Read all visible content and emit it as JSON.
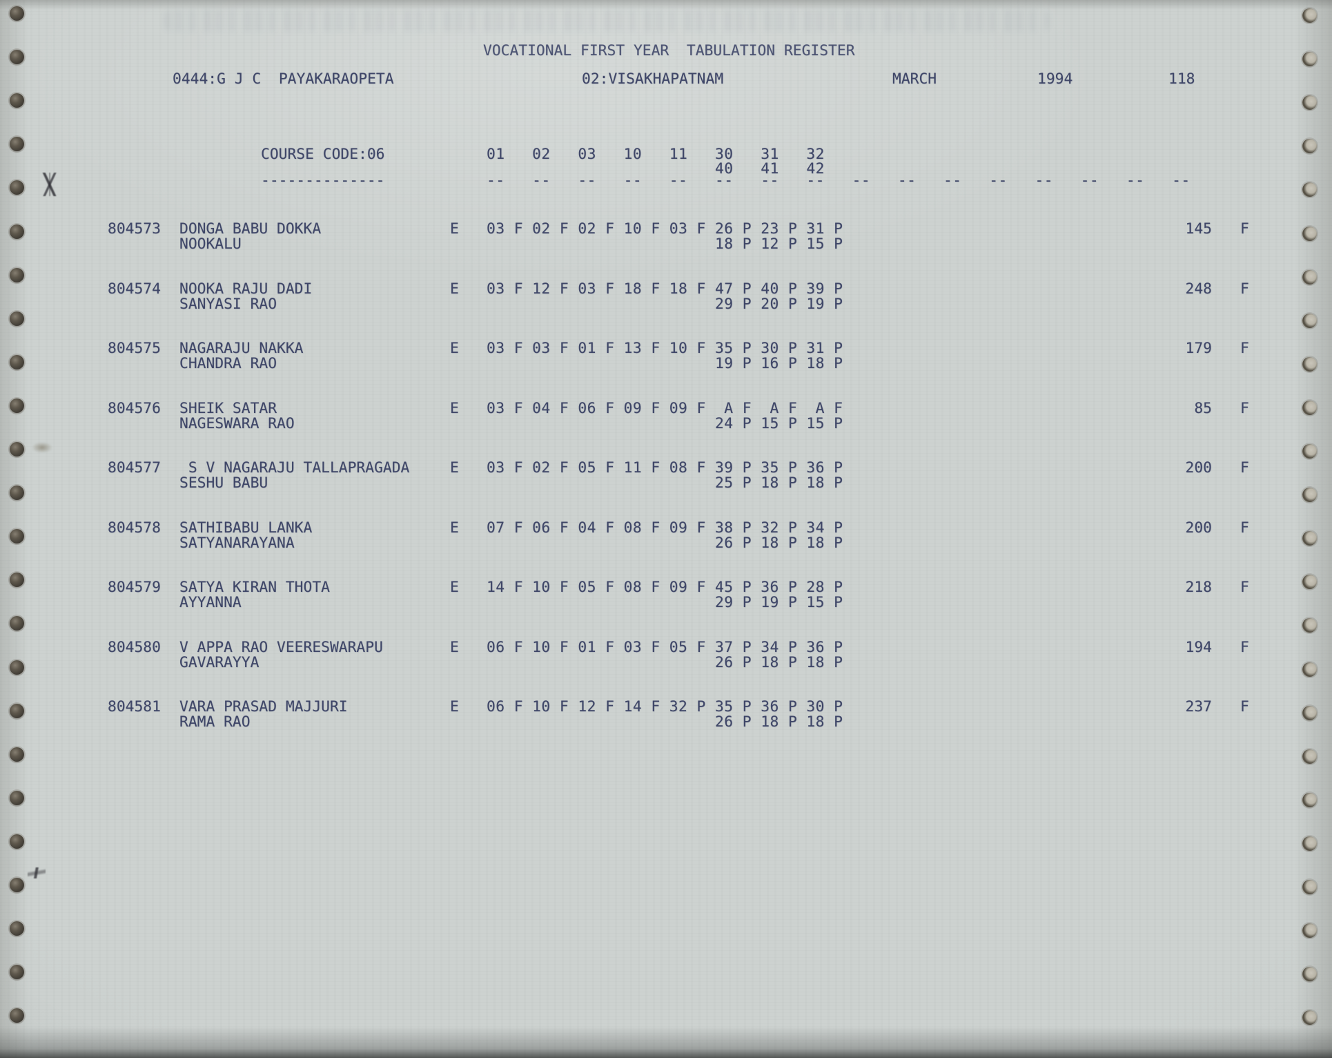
{
  "page": {
    "title": "VOCATIONAL FIRST YEAR  TABULATION REGISTER",
    "college": "0444:G J C  PAYAKARAOPETA",
    "district": "02:VISAKHAPATNAM",
    "month": "MARCH",
    "year": "1994",
    "page_number": "118"
  },
  "table": {
    "course_code_label": "COURSE CODE:06",
    "subject_codes_row1": [
      "01",
      "02",
      "03",
      "10",
      "11",
      "30",
      "31",
      "32"
    ],
    "subject_codes_row2": [
      "40",
      "41",
      "42"
    ],
    "dash_label": "--------------",
    "dash_groups": 16,
    "students": [
      {
        "reg_no": "804573",
        "name": "DONGA BABU DOKKA",
        "father_name": "NOOKALU",
        "medium": "E",
        "marks1": [
          [
            "03",
            "F"
          ],
          [
            "02",
            "F"
          ],
          [
            "02",
            "F"
          ],
          [
            "10",
            "F"
          ],
          [
            "03",
            "F"
          ],
          [
            "26",
            "P"
          ],
          [
            "23",
            "P"
          ],
          [
            "31",
            "P"
          ]
        ],
        "marks2": [
          [
            "18",
            "P"
          ],
          [
            "12",
            "P"
          ],
          [
            "15",
            "P"
          ]
        ],
        "total": "145",
        "result": "F"
      },
      {
        "reg_no": "804574",
        "name": "NOOKA RAJU DADI",
        "father_name": "SANYASI RAO",
        "medium": "E",
        "marks1": [
          [
            "03",
            "F"
          ],
          [
            "12",
            "F"
          ],
          [
            "03",
            "F"
          ],
          [
            "18",
            "F"
          ],
          [
            "18",
            "F"
          ],
          [
            "47",
            "P"
          ],
          [
            "40",
            "P"
          ],
          [
            "39",
            "P"
          ]
        ],
        "marks2": [
          [
            "29",
            "P"
          ],
          [
            "20",
            "P"
          ],
          [
            "19",
            "P"
          ]
        ],
        "total": "248",
        "result": "F"
      },
      {
        "reg_no": "804575",
        "name": "NAGARAJU NAKKA",
        "father_name": "CHANDRA RAO",
        "medium": "E",
        "marks1": [
          [
            "03",
            "F"
          ],
          [
            "03",
            "F"
          ],
          [
            "01",
            "F"
          ],
          [
            "13",
            "F"
          ],
          [
            "10",
            "F"
          ],
          [
            "35",
            "P"
          ],
          [
            "30",
            "P"
          ],
          [
            "31",
            "P"
          ]
        ],
        "marks2": [
          [
            "19",
            "P"
          ],
          [
            "16",
            "P"
          ],
          [
            "18",
            "P"
          ]
        ],
        "total": "179",
        "result": "F"
      },
      {
        "reg_no": "804576",
        "name": "SHEIK SATAR",
        "father_name": "NAGESWARA RAO",
        "medium": "E",
        "marks1": [
          [
            "03",
            "F"
          ],
          [
            "04",
            "F"
          ],
          [
            "06",
            "F"
          ],
          [
            "09",
            "F"
          ],
          [
            "09",
            "F"
          ],
          [
            "A",
            "F"
          ],
          [
            "A",
            "F"
          ],
          [
            "A",
            "F"
          ]
        ],
        "marks2": [
          [
            "24",
            "P"
          ],
          [
            "15",
            "P"
          ],
          [
            "15",
            "P"
          ]
        ],
        "total": "85",
        "result": "F"
      },
      {
        "reg_no": "804577",
        "name": " S V NAGARAJU TALLAPRAGADA",
        "father_name": "SESHU BABU",
        "medium": "E",
        "marks1": [
          [
            "03",
            "F"
          ],
          [
            "02",
            "F"
          ],
          [
            "05",
            "F"
          ],
          [
            "11",
            "F"
          ],
          [
            "08",
            "F"
          ],
          [
            "39",
            "P"
          ],
          [
            "35",
            "P"
          ],
          [
            "36",
            "P"
          ]
        ],
        "marks2": [
          [
            "25",
            "P"
          ],
          [
            "18",
            "P"
          ],
          [
            "18",
            "P"
          ]
        ],
        "total": "200",
        "result": "F"
      },
      {
        "reg_no": "804578",
        "name": "SATHIBABU LANKA",
        "father_name": "SATYANARAYANA",
        "medium": "E",
        "marks1": [
          [
            "07",
            "F"
          ],
          [
            "06",
            "F"
          ],
          [
            "04",
            "F"
          ],
          [
            "08",
            "F"
          ],
          [
            "09",
            "F"
          ],
          [
            "38",
            "P"
          ],
          [
            "32",
            "P"
          ],
          [
            "34",
            "P"
          ]
        ],
        "marks2": [
          [
            "26",
            "P"
          ],
          [
            "18",
            "P"
          ],
          [
            "18",
            "P"
          ]
        ],
        "total": "200",
        "result": "F"
      },
      {
        "reg_no": "804579",
        "name": "SATYA KIRAN THOTA",
        "father_name": "AYYANNA",
        "medium": "E",
        "marks1": [
          [
            "14",
            "F"
          ],
          [
            "10",
            "F"
          ],
          [
            "05",
            "F"
          ],
          [
            "08",
            "F"
          ],
          [
            "09",
            "F"
          ],
          [
            "45",
            "P"
          ],
          [
            "36",
            "P"
          ],
          [
            "28",
            "P"
          ]
        ],
        "marks2": [
          [
            "29",
            "P"
          ],
          [
            "19",
            "P"
          ],
          [
            "15",
            "P"
          ]
        ],
        "total": "218",
        "result": "F"
      },
      {
        "reg_no": "804580",
        "name": "V APPA RAO VEERESWARAPU",
        "father_name": "GAVARAYYA",
        "medium": "E",
        "marks1": [
          [
            "06",
            "F"
          ],
          [
            "10",
            "F"
          ],
          [
            "01",
            "F"
          ],
          [
            "03",
            "F"
          ],
          [
            "05",
            "F"
          ],
          [
            "37",
            "P"
          ],
          [
            "34",
            "P"
          ],
          [
            "36",
            "P"
          ]
        ],
        "marks2": [
          [
            "26",
            "P"
          ],
          [
            "18",
            "P"
          ],
          [
            "18",
            "P"
          ]
        ],
        "total": "194",
        "result": "F"
      },
      {
        "reg_no": "804581",
        "name": "VARA PRASAD MAJJURI",
        "father_name": "RAMA RAO",
        "medium": "E",
        "marks1": [
          [
            "06",
            "F"
          ],
          [
            "10",
            "F"
          ],
          [
            "12",
            "F"
          ],
          [
            "14",
            "F"
          ],
          [
            "32",
            "P"
          ],
          [
            "35",
            "P"
          ],
          [
            "36",
            "P"
          ],
          [
            "30",
            "P"
          ]
        ],
        "marks2": [
          [
            "26",
            "P"
          ],
          [
            "18",
            "P"
          ],
          [
            "18",
            "P"
          ]
        ],
        "total": "237",
        "result": "F"
      }
    ]
  }
}
